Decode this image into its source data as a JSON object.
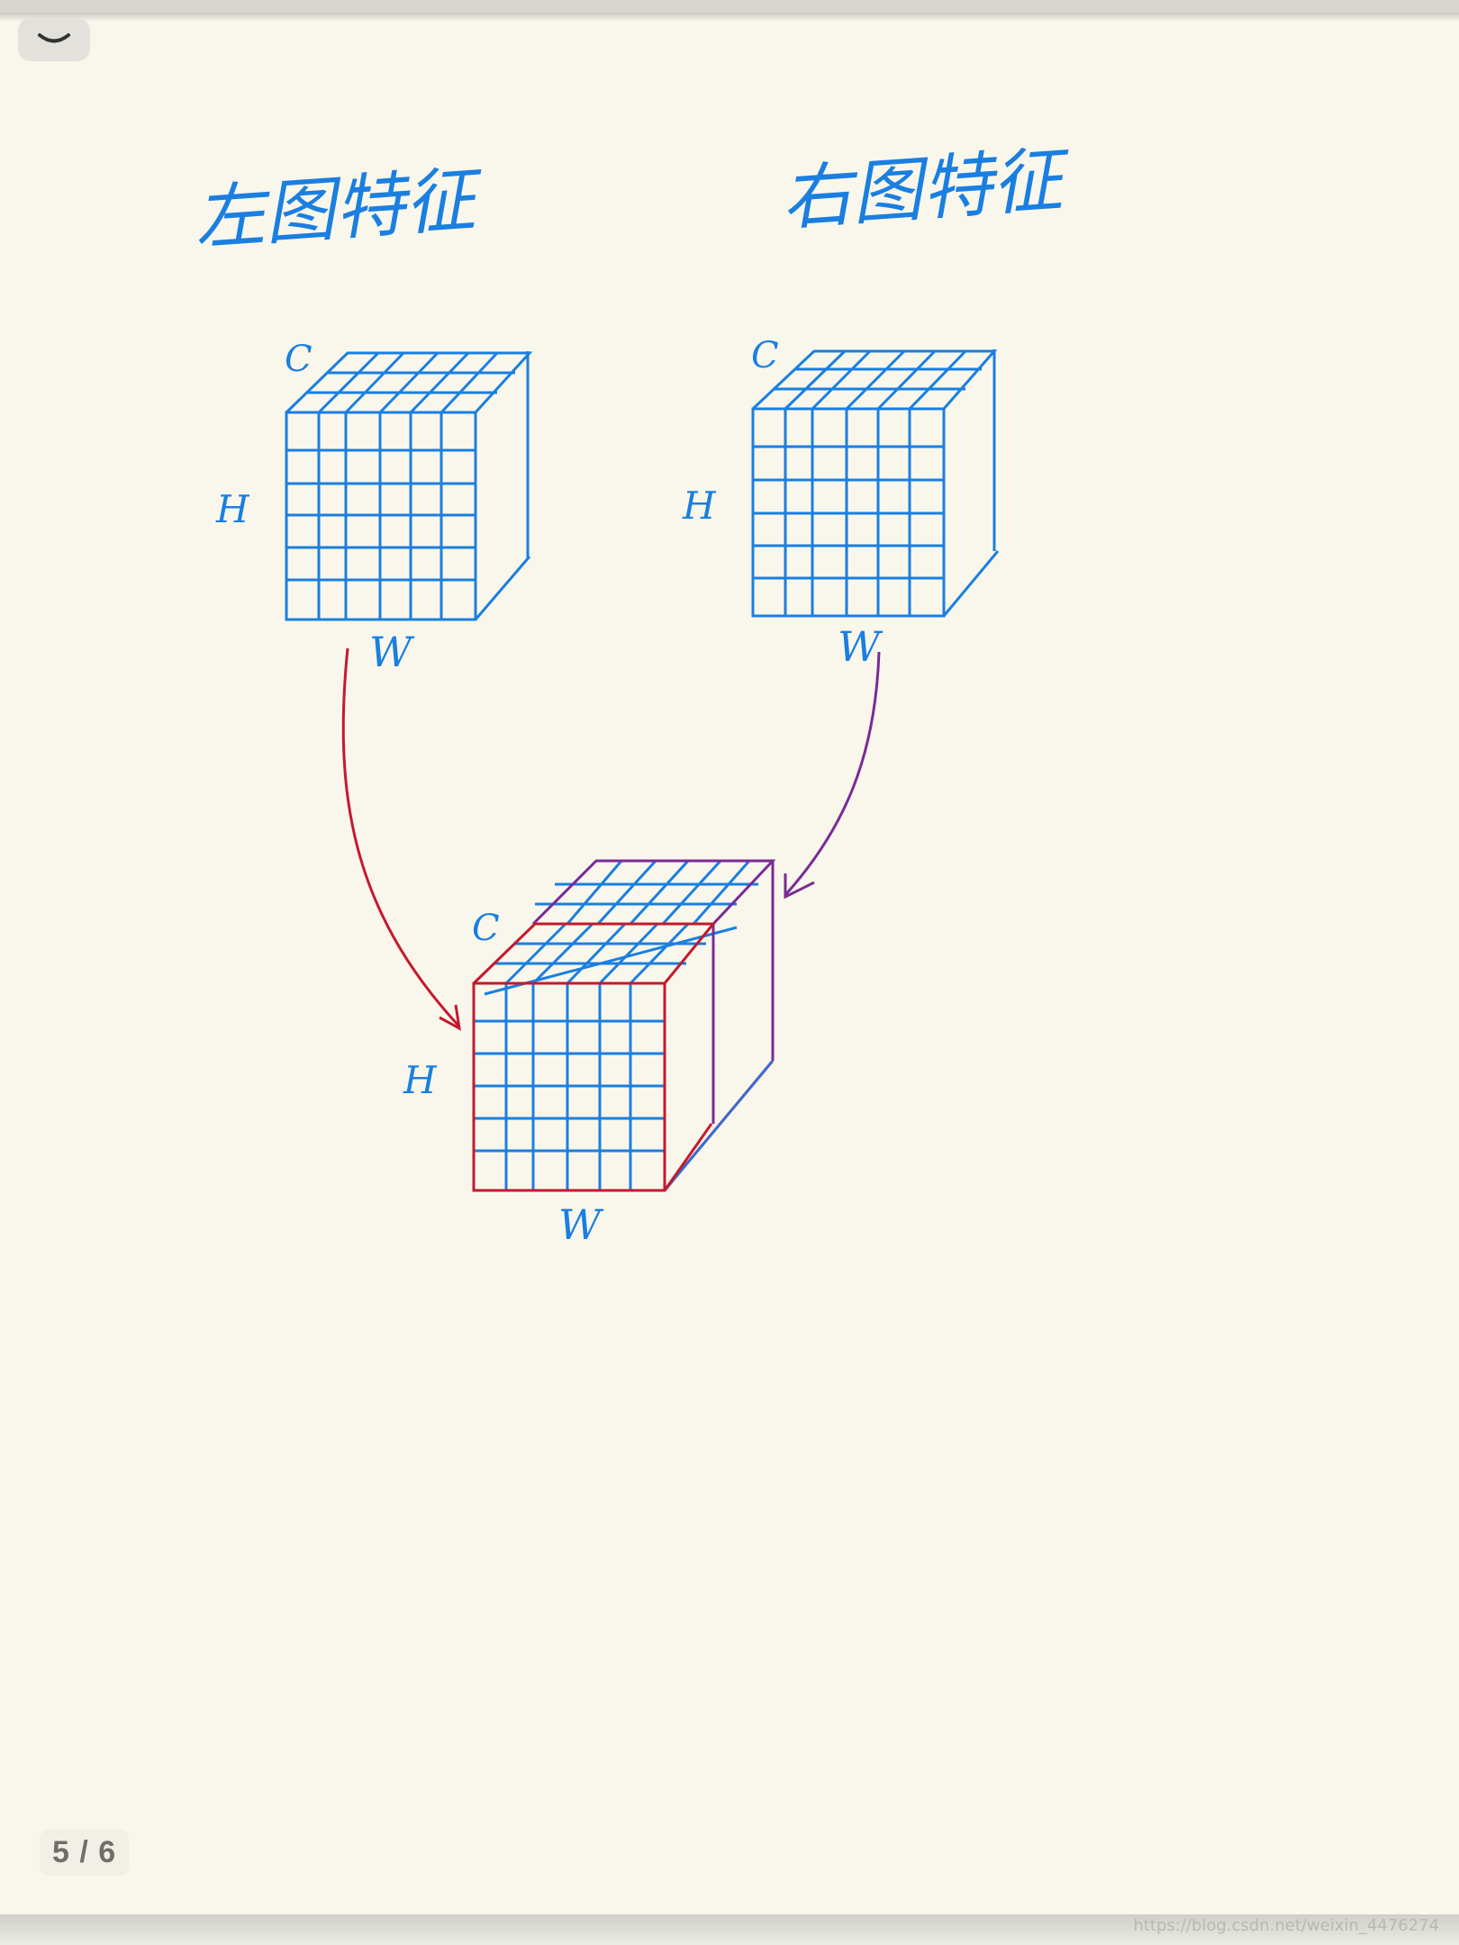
{
  "toolbar": {
    "collapse_icon": "chevron-down-icon",
    "collapse_glyph": "﹀"
  },
  "page_indicator": {
    "text": "5 / 6"
  },
  "watermark": {
    "text": "https://blog.csdn.net/weixin_4476274"
  },
  "note": {
    "left_title": "左图特征",
    "right_title": "右图特征",
    "left_cube": {
      "c_label": "C",
      "h_label": "H",
      "w_label": "W"
    },
    "right_cube": {
      "c_label": "C",
      "h_label": "H",
      "w_label": "W"
    },
    "merged_cube": {
      "c_label": "C",
      "h_label": "H",
      "w_label": "W"
    }
  },
  "colors": {
    "background": "#f9f7ec",
    "ink_blue": "#1a7fe0",
    "ink_red": "#c5192d",
    "ink_purple": "#7b2a96"
  }
}
